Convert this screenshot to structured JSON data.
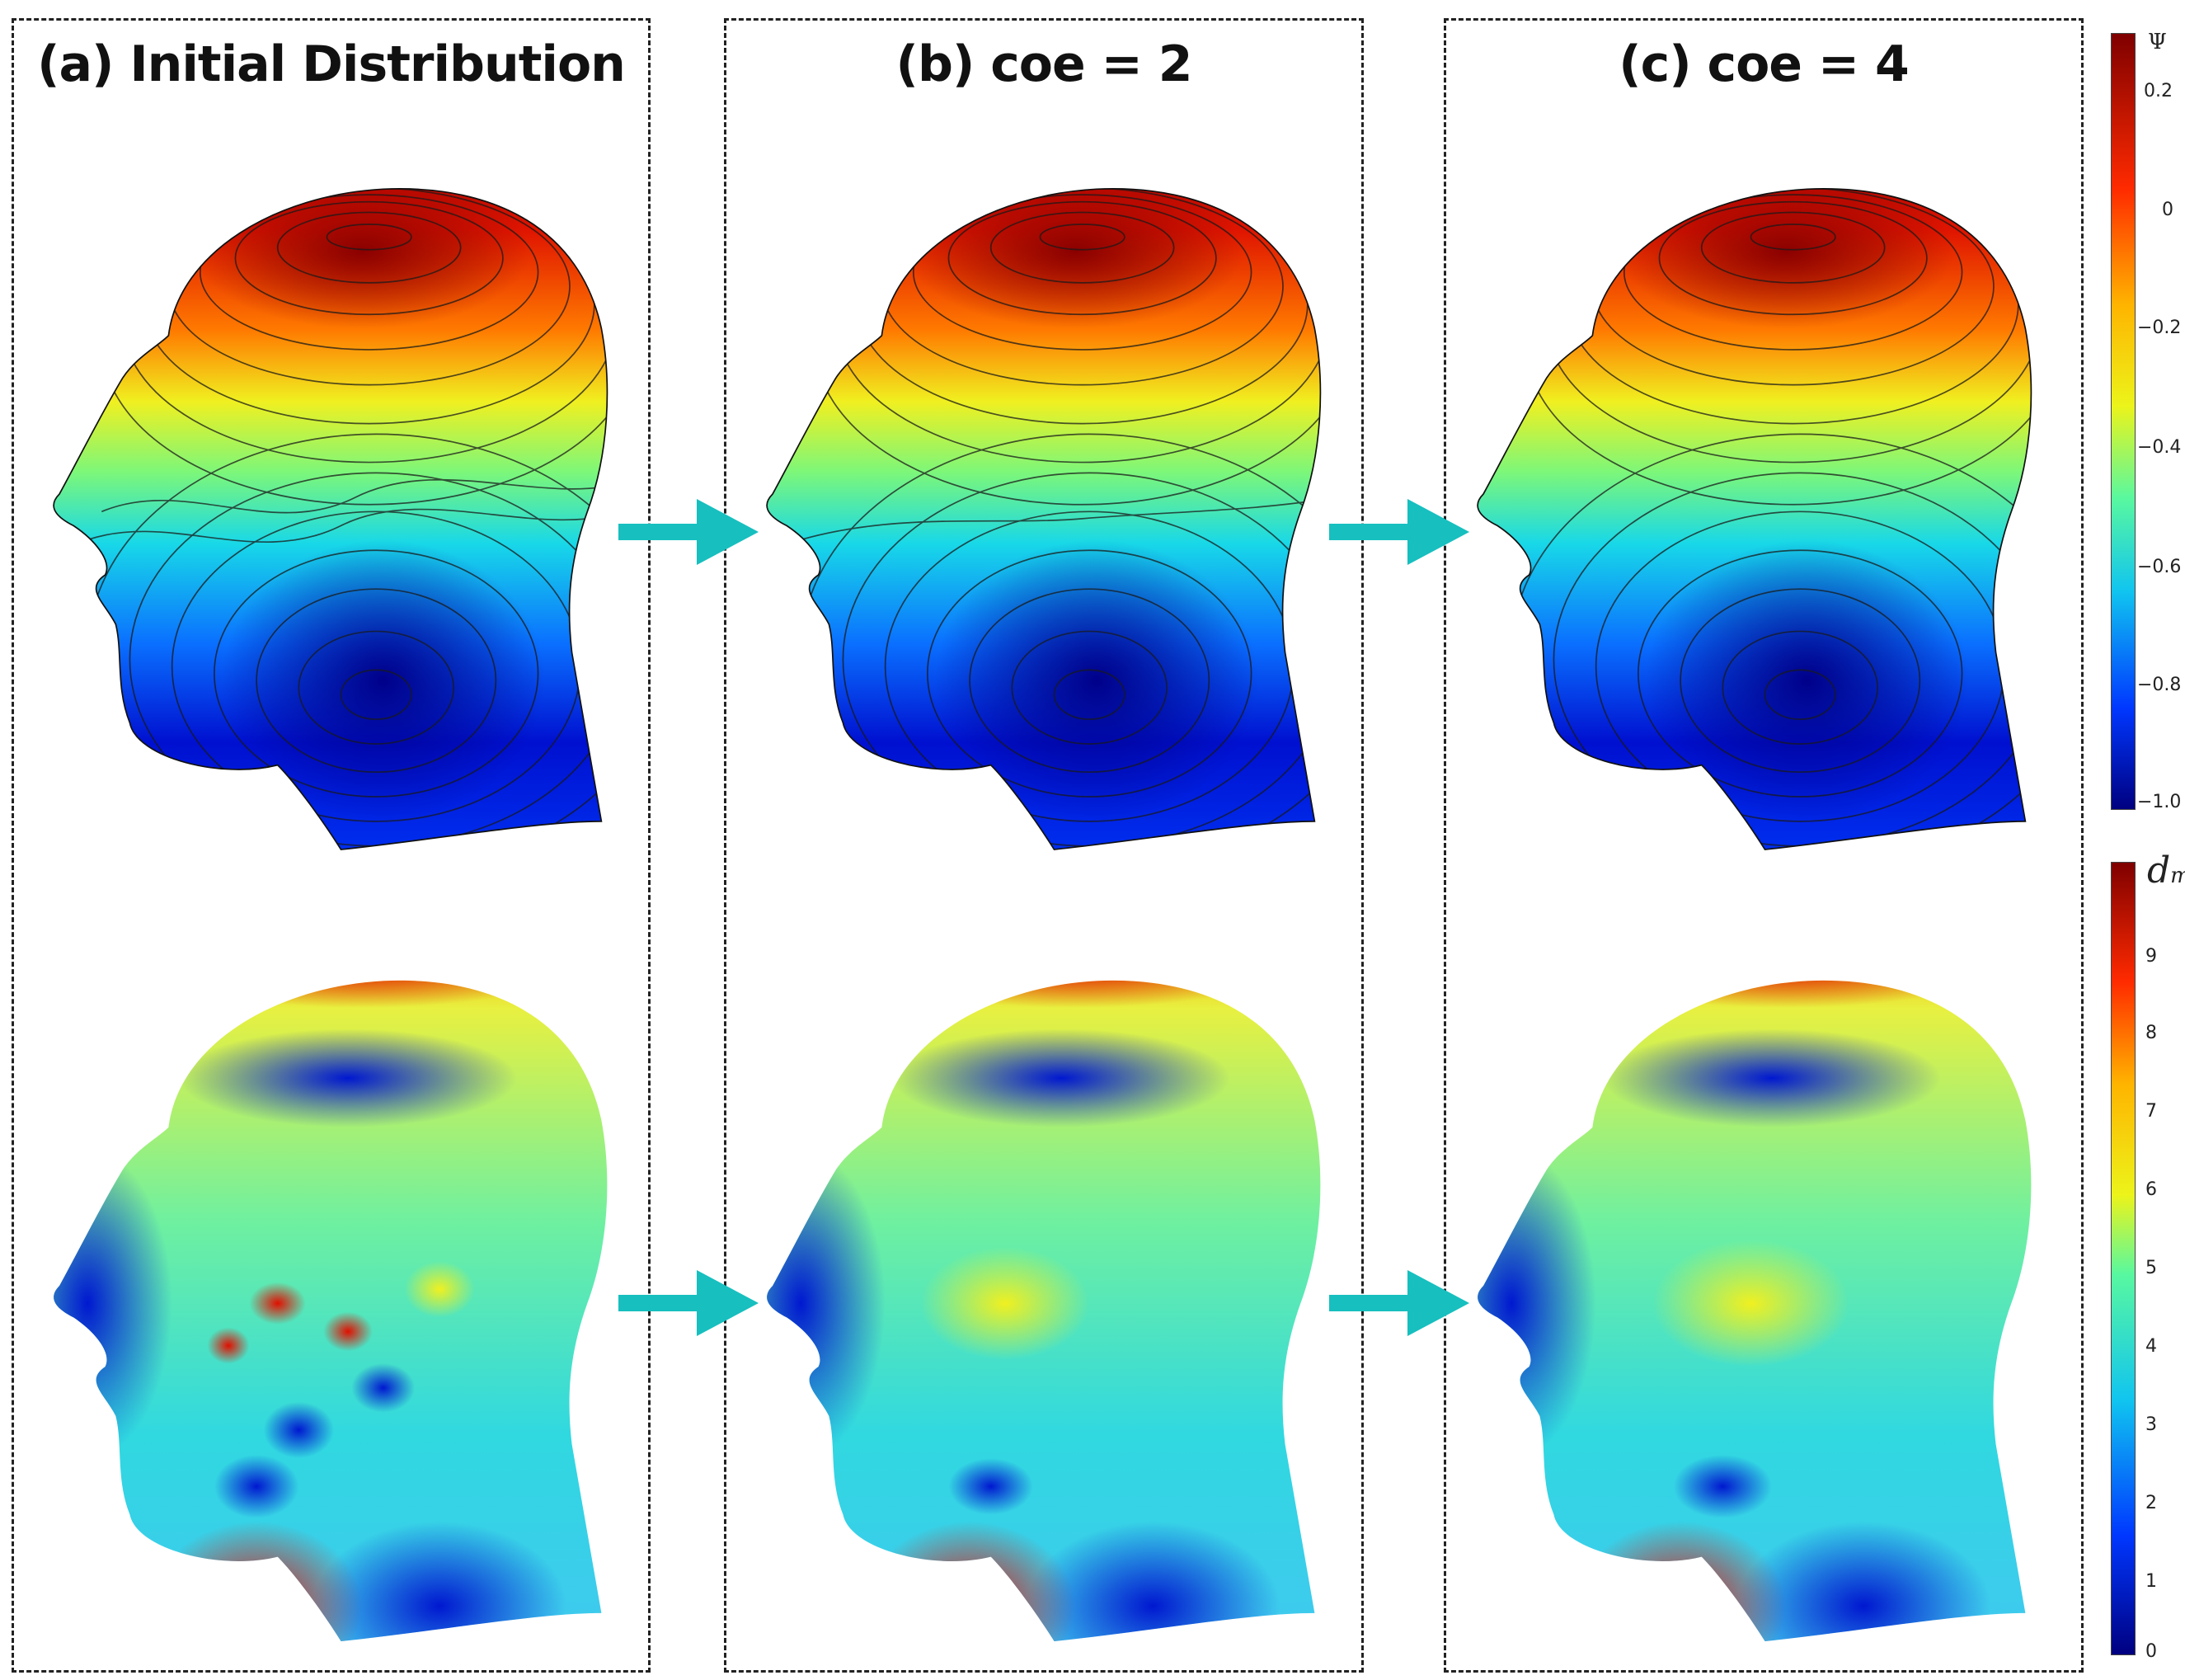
{
  "panels": [
    {
      "title": "(a) Initial Distribution"
    },
    {
      "title": "(b) coe = 2"
    },
    {
      "title": "(c) coe = 4"
    }
  ],
  "colorbar_psi": {
    "symbol": "Ψ",
    "ticks": [
      "0.2",
      "0",
      "−0.2",
      "−0.4",
      "−0.6",
      "−0.8",
      "−1.0"
    ],
    "colors": [
      "#7f0000",
      "#ff2a00",
      "#ffb400",
      "#ecf41a",
      "#58f8a0",
      "#10c4f0",
      "#0037ff",
      "#000080"
    ]
  },
  "colorbar_d": {
    "symbol": "d",
    "subscript": "m",
    "ticks": [
      "9",
      "8",
      "7",
      "6",
      "5",
      "4",
      "3",
      "2",
      "1",
      "0"
    ],
    "colors": [
      "#7f0000",
      "#ff2a00",
      "#ffb400",
      "#ecf41a",
      "#58f8a0",
      "#10c4f0",
      "#0037ff",
      "#000080"
    ]
  },
  "arrow_color": "#17bfbf"
}
